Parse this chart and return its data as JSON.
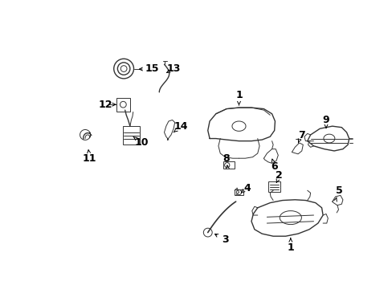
{
  "bg_color": "#ffffff",
  "line_color": "#333333",
  "label_color": "#000000",
  "figsize": [
    4.89,
    3.6
  ],
  "dpi": 100,
  "xlim": [
    0,
    489
  ],
  "ylim": [
    0,
    360
  ]
}
